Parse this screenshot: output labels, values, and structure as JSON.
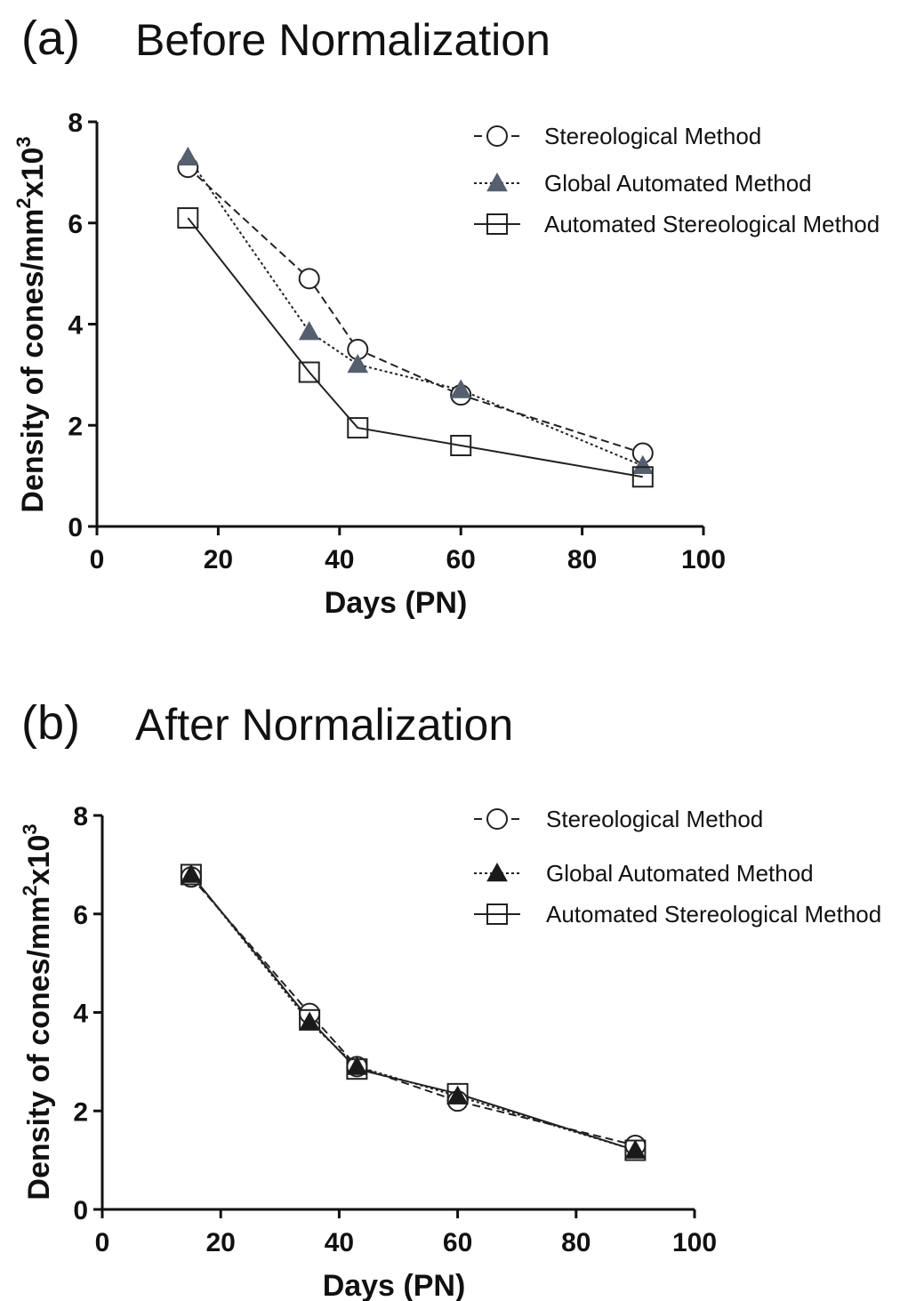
{
  "colors": {
    "axis": "#111111",
    "line": "#222222",
    "triangle_a": "#555f6e",
    "triangle_b": "#1a1a1a"
  },
  "chart_data": [
    {
      "type": "line",
      "panel_label": "(a)",
      "title": "Before Normalization",
      "xlabel": "Days (PN)",
      "ylabel_main": "Density of cones/mm",
      "ylabel_sup1": "2",
      "ylabel_mid": "x10",
      "ylabel_sup2": "3",
      "xlim": [
        0,
        100
      ],
      "ylim": [
        0,
        8
      ],
      "xticks": [
        0,
        20,
        40,
        60,
        80,
        100
      ],
      "yticks": [
        0,
        2,
        4,
        6,
        8
      ],
      "grid": false,
      "legend_position": "top-right",
      "series": [
        {
          "name": "Stereological Method",
          "marker": "circle",
          "line": "dashed",
          "x": [
            15,
            35,
            43,
            60,
            90
          ],
          "y": [
            7.1,
            4.9,
            3.5,
            2.6,
            1.45
          ]
        },
        {
          "name": "Global Automated Method",
          "marker": "triangle",
          "line": "dotted",
          "x": [
            15,
            35,
            43,
            60,
            90
          ],
          "y": [
            7.3,
            3.85,
            3.2,
            2.7,
            1.2
          ]
        },
        {
          "name": "Automated Stereological Method",
          "marker": "square",
          "line": "solid",
          "x": [
            15,
            35,
            43,
            60,
            90
          ],
          "y": [
            6.1,
            3.05,
            1.95,
            1.6,
            0.98
          ]
        }
      ]
    },
    {
      "type": "line",
      "panel_label": "(b)",
      "title": "After Normalization",
      "xlabel": "Days (PN)",
      "ylabel_main": "Density of cones/mm",
      "ylabel_sup1": "2",
      "ylabel_mid": "x10",
      "ylabel_sup2": "3",
      "xlim": [
        0,
        100
      ],
      "ylim": [
        0,
        8
      ],
      "xticks": [
        0,
        20,
        40,
        60,
        80,
        100
      ],
      "yticks": [
        0,
        2,
        4,
        6,
        8
      ],
      "grid": false,
      "legend_position": "top-right",
      "series": [
        {
          "name": "Stereological Method",
          "marker": "circle",
          "line": "dashed",
          "x": [
            15,
            35,
            43,
            60,
            90
          ],
          "y": [
            6.75,
            3.98,
            2.9,
            2.2,
            1.3
          ]
        },
        {
          "name": "Global Automated Method",
          "marker": "triangle",
          "line": "dotted",
          "x": [
            15,
            35,
            43,
            60,
            90
          ],
          "y": [
            6.8,
            3.8,
            2.9,
            2.3,
            1.2
          ]
        },
        {
          "name": "Automated Stereological Method",
          "marker": "square",
          "line": "solid",
          "x": [
            15,
            35,
            43,
            60,
            90
          ],
          "y": [
            6.8,
            3.85,
            2.85,
            2.35,
            1.2
          ]
        }
      ]
    }
  ]
}
